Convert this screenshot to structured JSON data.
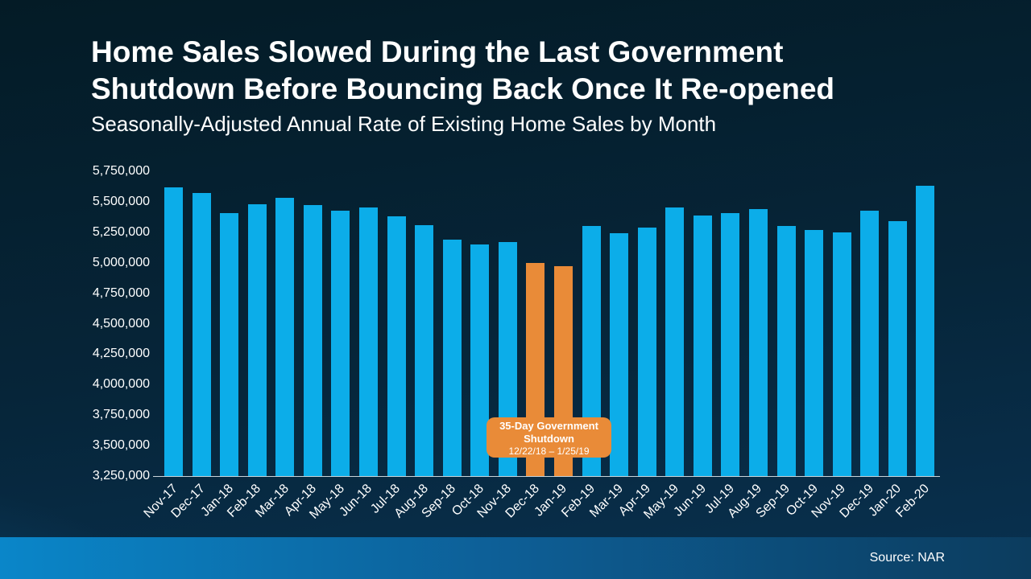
{
  "chart_data": {
    "type": "bar",
    "title": "Home Sales Slowed During the Last Government Shutdown Before Bouncing Back Once It Re-opened",
    "title_lines": [
      "Home Sales Slowed During the Last Government",
      "Shutdown Before Bouncing Back Once It Re-opened"
    ],
    "subtitle": "Seasonally-Adjusted Annual Rate of Existing Home Sales by Month",
    "categories": [
      "Nov-17",
      "Dec-17",
      "Jan-18",
      "Feb-18",
      "Mar-18",
      "Apr-18",
      "May-18",
      "Jun-18",
      "Jul-18",
      "Aug-18",
      "Sep-18",
      "Oct-18",
      "Nov-18",
      "Dec-18",
      "Jan-19",
      "Feb-19",
      "Mar-19",
      "Apr-19",
      "May-19",
      "Jun-19",
      "Jul-19",
      "Aug-19",
      "Sep-19",
      "Oct-19",
      "Nov-19",
      "Dec-19",
      "Jan-20",
      "Feb-20"
    ],
    "values": [
      5620000,
      5570000,
      5410000,
      5480000,
      5530000,
      5470000,
      5430000,
      5450000,
      5380000,
      5310000,
      5190000,
      5150000,
      5170000,
      5000000,
      4970000,
      5300000,
      5240000,
      5290000,
      5450000,
      5390000,
      5410000,
      5440000,
      5300000,
      5270000,
      5250000,
      5430000,
      5340000,
      5630000
    ],
    "ylim": [
      3250000,
      5750000
    ],
    "ytick_step": 250000,
    "ytick_labels": [
      "5,750,000",
      "5,500,000",
      "5,250,000",
      "5,000,000",
      "4,750,000",
      "4,500,000",
      "4,250,000",
      "4,000,000",
      "3,750,000",
      "3,500,000",
      "3,250,000"
    ],
    "grid": false,
    "legend": false,
    "highlight_indices": [
      13,
      14
    ],
    "colors": {
      "bar": "#0cade9",
      "highlight": "#e98b38",
      "axis_line": "#c9d4da",
      "text": "#ffffff"
    },
    "annotation": {
      "heading": "35-Day Government Shutdown",
      "dates": "12/22/18 – 1/25/19"
    }
  },
  "footer": {
    "source": "Source: NAR"
  }
}
